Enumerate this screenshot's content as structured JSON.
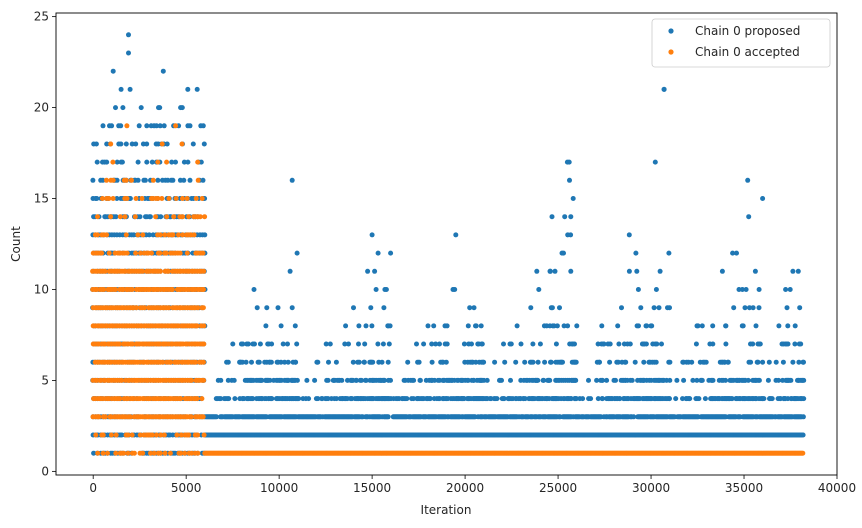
{
  "chart_data": {
    "type": "scatter",
    "title": "",
    "xlabel": "Iteration",
    "ylabel": "Count",
    "xlim": [
      -2000,
      40000
    ],
    "ylim": [
      -0.2,
      25.2
    ],
    "xticks": [
      0,
      5000,
      10000,
      15000,
      20000,
      25000,
      30000,
      35000,
      40000
    ],
    "yticks": [
      0,
      5,
      10,
      15,
      20,
      25
    ],
    "grid": false,
    "legend_position": "top-right",
    "x_max_iteration": 38200,
    "series": [
      {
        "name": "Chain 0 proposed",
        "color": "#1f77b4",
        "phase1": {
          "x_range": [
            0,
            6000
          ],
          "count_range": [
            1,
            13
          ],
          "sparse_counts": [
            14,
            15,
            16,
            17,
            18,
            19,
            20,
            21,
            22
          ]
        },
        "phase2_dense_counts": [
          1,
          2,
          3
        ],
        "phase2_cycles": [
          {
            "x_range": [
              6500,
              11000
            ],
            "peak_x": 10700,
            "peak_count": 16
          },
          {
            "x_range": [
              11000,
              16000
            ],
            "peak_x": 15000,
            "peak_count": 13
          },
          {
            "x_range": [
              16000,
              21000
            ],
            "peak_x": 19500,
            "peak_count": 13
          },
          {
            "x_range": [
              21000,
              26000
            ],
            "peak_x": 25500,
            "peak_count": 17
          },
          {
            "x_range": [
              26000,
              31000
            ],
            "peak_x": 30700,
            "peak_count": 21
          },
          {
            "x_range": [
              31000,
              36000
            ],
            "peak_x": 35200,
            "peak_count": 16
          },
          {
            "x_range": [
              36000,
              38200
            ],
            "peak_x": 36000,
            "peak_count": 15
          }
        ],
        "outliers": [
          {
            "x": 1900,
            "y": 24
          },
          {
            "x": 1900,
            "y": 23
          },
          {
            "x": 30700,
            "y": 21
          },
          {
            "x": 25600,
            "y": 17
          }
        ]
      },
      {
        "name": "Chain 0 accepted",
        "color": "#ff7f0e",
        "phase1": {
          "x_range": [
            0,
            6000
          ],
          "count_range": [
            1,
            11
          ],
          "sparse_counts": [
            12,
            13,
            14,
            15,
            16,
            17,
            18,
            19
          ]
        },
        "phase2_dense_counts": [
          1
        ]
      }
    ]
  }
}
